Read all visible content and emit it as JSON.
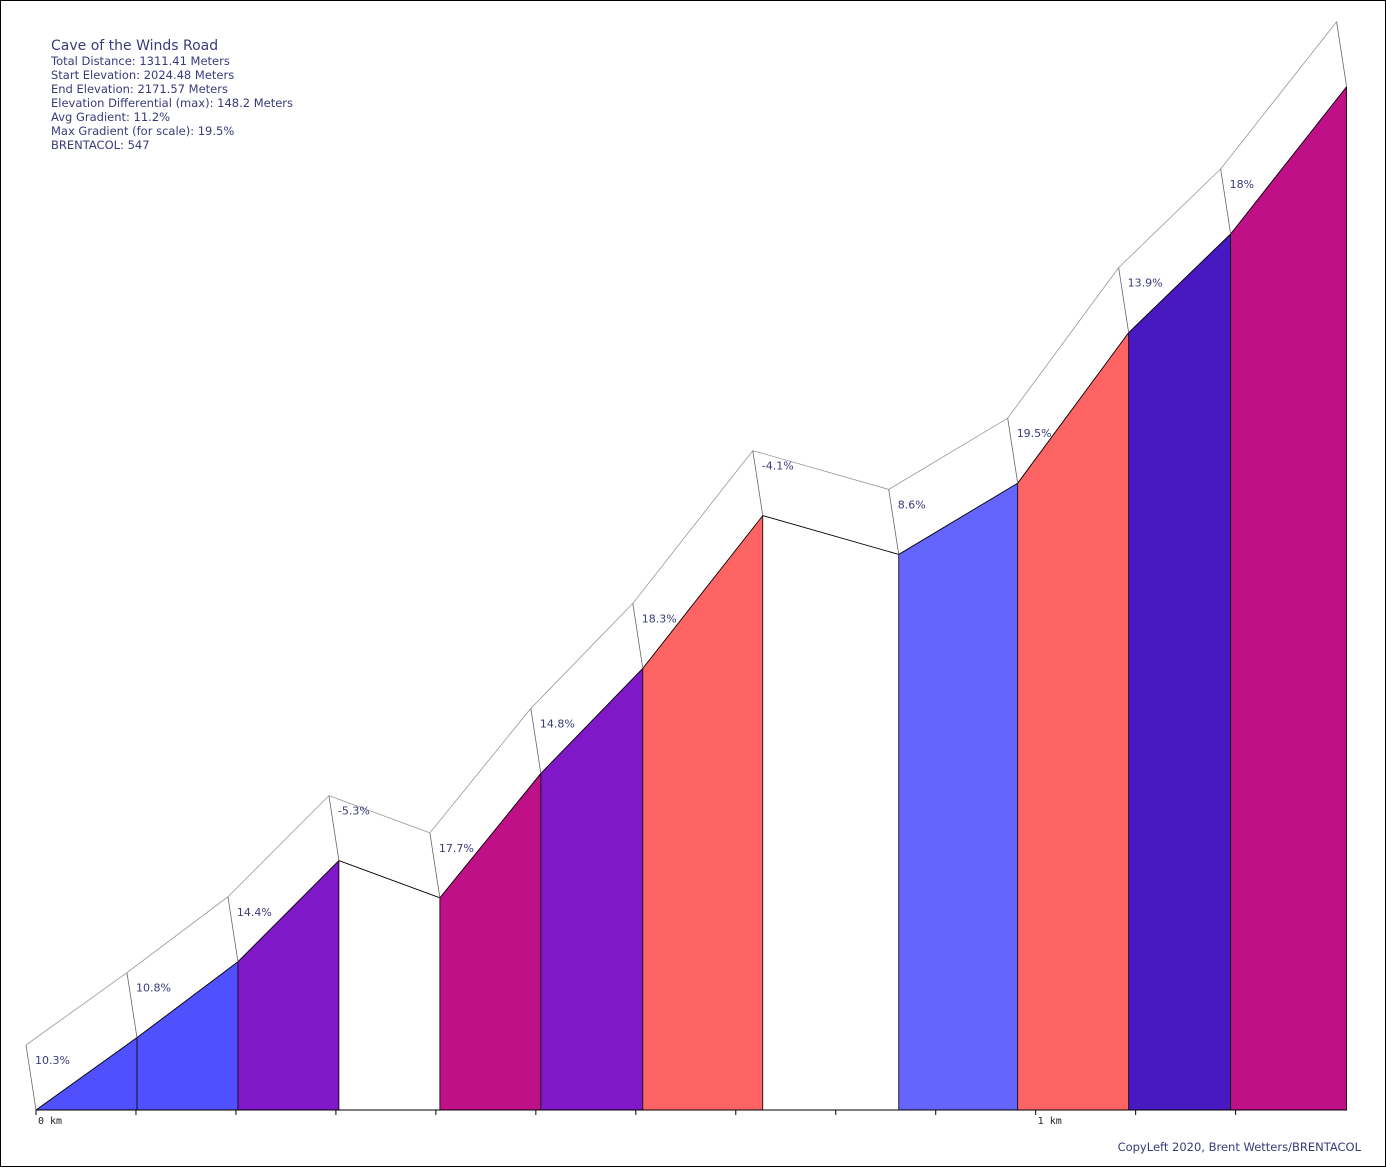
{
  "info": {
    "title": "Cave of the Winds Road",
    "total_distance": "Total Distance: 1311.41 Meters",
    "start_elevation": "Start Elevation: 2024.48 Meters",
    "end_elevation": "End Elevation: 2171.57 Meters",
    "elevation_differential": "Elevation Differential (max): 148.2 Meters",
    "avg_gradient": "Avg Gradient: 11.2%",
    "max_gradient": "Max Gradient (for scale): 19.5%",
    "brentacol": "BRENTACOL: 547"
  },
  "credit": "CopyLeft 2020, Brent Wetters/BRENTACOL",
  "chart_data": {
    "type": "area",
    "title": "Cave of the Winds Road",
    "x_unit": "km",
    "x_ticks": [
      0,
      0.1,
      0.2,
      0.3,
      0.4,
      0.5,
      0.6,
      0.7,
      0.8,
      0.9,
      1.0,
      1.1,
      1.2
    ],
    "x_tick_labels": [
      "0 km",
      "",
      "",
      "",
      "",
      "",
      "",
      "",
      "",
      "",
      "1 km",
      "",
      ""
    ],
    "xlim": [
      0,
      1.31141
    ],
    "ylim": [
      2024.48,
      2172.68
    ],
    "segments": [
      {
        "x0": 0.0,
        "x1": 0.101,
        "elev_start": 2024.48,
        "elev_end": 2034.88,
        "gradient": "10.3%",
        "color": "#5050ff"
      },
      {
        "x0": 0.101,
        "x1": 0.202,
        "elev_start": 2034.88,
        "elev_end": 2045.79,
        "gradient": "10.8%",
        "color": "#5050ff"
      },
      {
        "x0": 0.202,
        "x1": 0.303,
        "elev_start": 2045.79,
        "elev_end": 2060.33,
        "gradient": "14.4%",
        "color": "#8018c8"
      },
      {
        "x0": 0.303,
        "x1": 0.404,
        "elev_start": 2060.33,
        "elev_end": 2054.98,
        "gradient": "-5.3%",
        "color": "#ffffff"
      },
      {
        "x0": 0.404,
        "x1": 0.505,
        "elev_start": 2054.98,
        "elev_end": 2072.86,
        "gradient": "17.7%",
        "color": "#c01088"
      },
      {
        "x0": 0.505,
        "x1": 0.607,
        "elev_start": 2072.86,
        "elev_end": 2087.96,
        "gradient": "14.8%",
        "color": "#8018c8"
      },
      {
        "x0": 0.607,
        "x1": 0.727,
        "elev_start": 2087.96,
        "elev_end": 2109.92,
        "gradient": "18.3%",
        "color": "#ff6464"
      },
      {
        "x0": 0.727,
        "x1": 0.863,
        "elev_start": 2109.92,
        "elev_end": 2104.34,
        "gradient": "-4.1%",
        "color": "#ffffff"
      },
      {
        "x0": 0.863,
        "x1": 0.982,
        "elev_start": 2104.34,
        "elev_end": 2114.58,
        "gradient": "8.6%",
        "color": "#6464ff"
      },
      {
        "x0": 0.982,
        "x1": 1.093,
        "elev_start": 2114.58,
        "elev_end": 2136.22,
        "gradient": "19.5%",
        "color": "#ff6464"
      },
      {
        "x0": 1.093,
        "x1": 1.195,
        "elev_start": 2136.22,
        "elev_end": 2150.4,
        "gradient": "13.9%",
        "color": "#4818c0"
      },
      {
        "x0": 1.195,
        "x1": 1.311,
        "elev_start": 2150.4,
        "elev_end": 2171.57,
        "gradient": "18%",
        "color": "#c01088"
      }
    ]
  }
}
